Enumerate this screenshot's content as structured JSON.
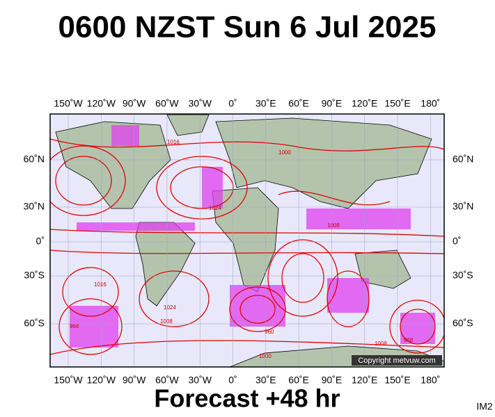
{
  "header": {
    "title": "0600 NZST Sun 6 Jul 2025"
  },
  "map": {
    "lon_labels": [
      "150˚W",
      "120˚W",
      "90˚W",
      "60˚W",
      "30˚W",
      "0˚",
      "30˚E",
      "60˚E",
      "90˚E",
      "120˚E",
      "150˚E",
      "180˚"
    ],
    "lat_labels": [
      "60˚N",
      "30˚N",
      "0˚",
      "30˚S",
      "60˚S"
    ],
    "isobar_labels": [
      "1016",
      "1024",
      "1000",
      "1008",
      "1016",
      "1024",
      "984",
      "1008",
      "960",
      "1000",
      "1008",
      "968"
    ],
    "copyright": "Copyright metvuw.com"
  },
  "footer": {
    "forecast": "Forecast +48 hr",
    "id": "IM2"
  }
}
